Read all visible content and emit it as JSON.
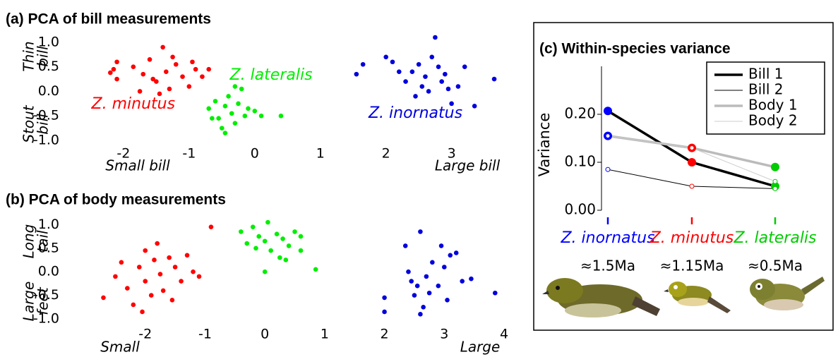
{
  "chart_data": [
    {
      "type": "scatter",
      "title": "(a) PCA of bill measurements",
      "xlim": [
        -2.3,
        3.8
      ],
      "ylim": [
        -1.0,
        1.1
      ],
      "xticks": [
        -2,
        -1,
        0,
        1,
        2,
        3
      ],
      "yticks": [
        {
          "value": 1,
          "label": "1.0"
        },
        {
          "value": 0.5,
          "label": "0.5"
        },
        {
          "value": 0,
          "label": "0.0"
        },
        {
          "value": -0.5,
          "label": "-0.5"
        },
        {
          "value": -1,
          "label": "-1.0"
        }
      ],
      "y_label_top": [
        "Thin",
        "bill"
      ],
      "y_label_bottom": [
        "Stout",
        "bill"
      ],
      "x_label_left": "Small bill",
      "x_label_right": "Large bill",
      "series": [
        {
          "name": "Z. minutus",
          "color": "#ff0000",
          "x": [
            -2.15,
            -2.1,
            -2.2,
            -2.1,
            -1.85,
            -1.7,
            -1.6,
            -1.5,
            -1.4,
            -1.35,
            -1.3,
            -1.2,
            -1.1,
            -1.0,
            -0.9,
            -0.8,
            -0.7,
            -1.75,
            -1.25,
            -1.55,
            -0.95,
            -1.45
          ],
          "y": [
            0.45,
            0.6,
            0.38,
            0.25,
            0.5,
            0.35,
            0.65,
            0.2,
            0.9,
            0.4,
            0.05,
            0.55,
            0.3,
            0.1,
            0.45,
            0.3,
            0.45,
            0.0,
            0.7,
            0.25,
            0.6,
            -0.05
          ]
        },
        {
          "name": "Z. lateralis",
          "color": "#00ee00",
          "x": [
            -0.7,
            -0.6,
            -0.55,
            -0.5,
            -0.45,
            -0.4,
            -0.35,
            -0.3,
            -0.25,
            -0.2,
            -0.15,
            -0.1,
            0.0,
            0.1,
            0.4,
            -0.3,
            -0.45,
            -0.65
          ],
          "y": [
            -0.35,
            -0.2,
            -0.55,
            -0.75,
            -0.3,
            -0.1,
            -0.45,
            -0.65,
            -0.25,
            0.05,
            -0.5,
            -0.35,
            -0.4,
            -0.5,
            -0.5,
            0.1,
            -0.85,
            -0.55
          ]
        },
        {
          "name": "Z. inornatus",
          "color": "#0000dd",
          "x": [
            1.55,
            1.65,
            2.0,
            2.1,
            2.2,
            2.3,
            2.4,
            2.5,
            2.55,
            2.6,
            2.65,
            2.75,
            2.8,
            2.85,
            2.9,
            2.95,
            3.0,
            3.1,
            3.2,
            3.35,
            3.65,
            2.45,
            2.7
          ],
          "y": [
            0.35,
            0.55,
            0.7,
            0.6,
            0.4,
            0.2,
            0.4,
            0.55,
            0.1,
            0.3,
            0.0,
            1.1,
            0.5,
            0.2,
            0.35,
            0.05,
            -0.25,
            0.1,
            0.5,
            -0.3,
            0.25,
            -0.1,
            0.7
          ]
        }
      ]
    },
    {
      "type": "scatter",
      "title": "(b) PCA of body measurements",
      "xlim": [
        -2.8,
        4.0
      ],
      "ylim": [
        -1.0,
        1.2
      ],
      "xticks": [
        -2,
        -1,
        0,
        1,
        2,
        3,
        4
      ],
      "yticks": [
        {
          "value": 1,
          "label": "1.0"
        },
        {
          "value": 0.5,
          "label": "0.5"
        },
        {
          "value": 0,
          "label": "0.0"
        },
        {
          "value": -0.5,
          "label": "-0.5"
        },
        {
          "value": -1,
          "label": "-1.0"
        }
      ],
      "y_label_top": [
        "Long",
        "tail"
      ],
      "y_label_bottom": [
        "Large",
        "feet"
      ],
      "x_label_left": "Small",
      "x_label_right": "Large",
      "series": [
        {
          "color": "#ff0000",
          "x": [
            -2.7,
            -2.5,
            -2.4,
            -2.3,
            -2.2,
            -2.1,
            -2.0,
            -2.0,
            -1.9,
            -1.85,
            -1.8,
            -1.75,
            -1.7,
            -1.6,
            -1.55,
            -1.5,
            -1.4,
            -1.3,
            -1.2,
            -1.1,
            -2.05,
            -0.9
          ],
          "y": [
            -0.55,
            -0.1,
            0.2,
            -0.35,
            -0.7,
            0.1,
            0.45,
            -0.2,
            -0.5,
            0.25,
            0.6,
            -0.05,
            -0.4,
            0.3,
            -0.6,
            0.1,
            -0.2,
            0.35,
            0.0,
            -0.1,
            -0.85,
            0.95
          ]
        },
        {
          "color": "#00ee00",
          "x": [
            -0.4,
            -0.3,
            -0.2,
            -0.1,
            0.0,
            0.05,
            0.1,
            0.2,
            0.25,
            0.3,
            0.4,
            0.5,
            0.6,
            0.6,
            0.35,
            0.0,
            0.85,
            -0.15
          ],
          "y": [
            0.85,
            0.6,
            0.95,
            0.75,
            0.65,
            1.05,
            0.45,
            0.8,
            0.3,
            0.7,
            0.55,
            0.85,
            0.75,
            0.45,
            0.25,
            0.0,
            0.05,
            0.5
          ]
        },
        {
          "color": "#0000dd",
          "x": [
            2.0,
            2.0,
            2.35,
            2.4,
            2.45,
            2.5,
            2.55,
            2.6,
            2.65,
            2.7,
            2.75,
            2.8,
            2.9,
            3.0,
            3.05,
            3.1,
            3.2,
            3.3,
            3.45,
            3.85,
            2.6,
            2.95
          ],
          "y": [
            -0.55,
            -0.85,
            0.55,
            0.0,
            -0.2,
            -0.5,
            -0.3,
            0.85,
            -0.75,
            -0.1,
            -0.45,
            0.2,
            -0.3,
            0.1,
            -0.6,
            0.35,
            0.4,
            -0.2,
            -0.15,
            -0.45,
            -0.9,
            0.55
          ]
        }
      ]
    },
    {
      "type": "line",
      "title": "(c) Within-species variance",
      "y_label": "Variance",
      "categories": [
        "Z. inornatus",
        "Z. minutus",
        "Z. lateralis"
      ],
      "category_colors": [
        "#0000ff",
        "#ff0000",
        "#00cc00"
      ],
      "ages": [
        "≈1.5Ma",
        "≈1.15Ma",
        "≈0.5Ma"
      ],
      "ylim": [
        0,
        0.3
      ],
      "yticks": [
        {
          "value": 0.2,
          "label": "0.20"
        },
        {
          "value": 0.1,
          "label": "0.10"
        },
        {
          "value": 0,
          "label": "0.00"
        }
      ],
      "series": [
        {
          "name": "Bill 1",
          "color": "#000000",
          "line_width": 3.5,
          "marker": "filled",
          "values": [
            0.207,
            0.1,
            0.05
          ]
        },
        {
          "name": "Bill 2",
          "color": "#000000",
          "line_width": 1,
          "marker": "open",
          "values": [
            0.085,
            0.05,
            0.045
          ]
        },
        {
          "name": "Body 1",
          "color": "#bbbbbb",
          "line_width": 3.5,
          "marker": "filled",
          "values": [
            0.155,
            0.13,
            0.09
          ]
        },
        {
          "name": "Body 2",
          "color": "#cccccc",
          "line_width": 1,
          "marker": "open",
          "values": [
            0.155,
            0.13,
            0.06
          ]
        }
      ]
    }
  ]
}
